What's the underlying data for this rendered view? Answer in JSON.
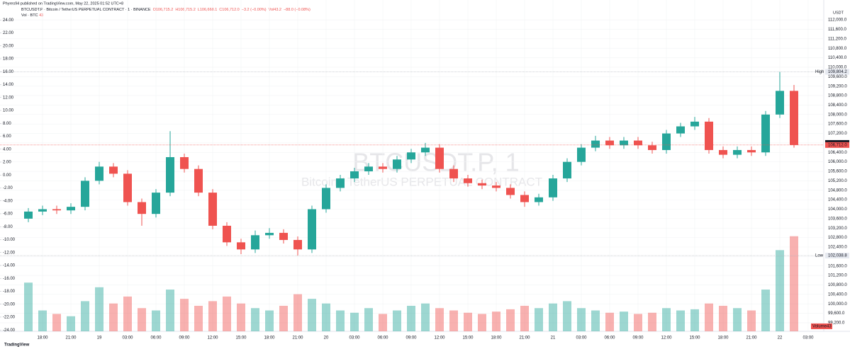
{
  "header": {
    "published": "Phyres94 published on TradingView.com, May 22, 2025 01:52 UTC+8",
    "symbol": "BTCUSDT.P · Bitcoin / TetherUS PERPETUAL CONTRACT · 1 · BINANCE",
    "ohlc": [
      "O106,715.2",
      "H106,715.2",
      "L106,668.1",
      "C106,712.0",
      "−3.2 (−0.00%)",
      "Vol43.2",
      "−88.0 (−0.08%)"
    ],
    "vol_label": "Vol · BTC",
    "vol_value": "43"
  },
  "watermark": {
    "symbol": "BTCUSDT.P, 1",
    "name": "Bitcoin / TetherUS PERPETUAL CONTRACT"
  },
  "footer": "TradingView",
  "chart_data": {
    "type": "candlestick",
    "currency": "USDT",
    "categories": [
      null,
      "18:00",
      null,
      "21:00",
      null,
      "19",
      null,
      "03:00",
      null,
      "06:00",
      null,
      "09:00",
      null,
      "12:00",
      null,
      "15:00",
      null,
      "18:00",
      null,
      "21:00",
      null,
      "20",
      null,
      "03:00",
      null,
      "06:00",
      null,
      "09:00",
      null,
      "12:00",
      null,
      "15:00",
      null,
      "18:00",
      null,
      "21:00",
      null,
      "21",
      null,
      "03:00",
      null,
      "06:00",
      null,
      "09:00",
      null,
      "12:00",
      null,
      "15:00",
      null,
      "18:00",
      null,
      "21:00",
      null,
      "22",
      null,
      "03:00"
    ],
    "open": [
      103600,
      103900,
      104000,
      103950,
      104100,
      105200,
      105800,
      105500,
      104300,
      103800,
      104700,
      106200,
      105700,
      104700,
      103300,
      102600,
      102300,
      102900,
      103000,
      102700,
      102300,
      104000,
      104900,
      105300,
      105600,
      105800,
      105700,
      106100,
      106400,
      106600,
      105700,
      105300,
      105100,
      105000,
      104900,
      104600,
      104300,
      104500,
      105300,
      106000,
      106600,
      106900,
      106700,
      106900,
      106700,
      106500,
      107200,
      107500,
      107700,
      106500,
      106300,
      106500,
      106400,
      108000,
      109000,
      null
    ],
    "high": [
      104050,
      104150,
      104150,
      104250,
      105350,
      106000,
      105950,
      105650,
      104450,
      104850,
      107300,
      106350,
      105850,
      104850,
      103450,
      102750,
      103100,
      103200,
      103150,
      102850,
      104150,
      105050,
      105450,
      105750,
      105950,
      105950,
      106250,
      106550,
      106800,
      106750,
      105850,
      105450,
      105250,
      105150,
      105050,
      104750,
      104650,
      105450,
      106150,
      106750,
      107100,
      107050,
      107050,
      107050,
      106850,
      107350,
      107650,
      107900,
      107850,
      106650,
      106650,
      106650,
      108150,
      109804.2,
      109250,
      null
    ],
    "low": [
      103450,
      103750,
      103800,
      103800,
      103950,
      105050,
      105350,
      104150,
      103300,
      103650,
      104550,
      105550,
      104550,
      103150,
      102450,
      102100,
      102150,
      102750,
      102550,
      102038.8,
      102150,
      103850,
      104750,
      105150,
      105450,
      105550,
      105550,
      105950,
      106250,
      105550,
      105150,
      104950,
      104850,
      104750,
      104450,
      104100,
      104150,
      104350,
      105150,
      105850,
      106450,
      106550,
      106550,
      106550,
      106350,
      106350,
      107050,
      107350,
      106350,
      106150,
      106150,
      106250,
      106250,
      107850,
      106600,
      null
    ],
    "close": [
      103900,
      104000,
      103950,
      104100,
      105200,
      105800,
      105500,
      104300,
      103800,
      104700,
      106200,
      105700,
      104700,
      103300,
      102600,
      102300,
      102900,
      103000,
      102700,
      102300,
      104000,
      104900,
      105300,
      105600,
      105800,
      105700,
      106100,
      106400,
      106600,
      105700,
      105300,
      105100,
      105000,
      104900,
      104600,
      104300,
      104500,
      105300,
      106000,
      106600,
      106900,
      106700,
      106900,
      106700,
      106500,
      107200,
      107500,
      107700,
      106500,
      106300,
      106500,
      106400,
      108000,
      109000,
      106712,
      null
    ],
    "volume": [
      420,
      180,
      150,
      130,
      260,
      380,
      240,
      300,
      200,
      180,
      360,
      280,
      220,
      260,
      300,
      240,
      200,
      180,
      220,
      320,
      280,
      240,
      180,
      160,
      200,
      150,
      180,
      220,
      240,
      200,
      180,
      160,
      150,
      170,
      190,
      220,
      200,
      240,
      260,
      200,
      180,
      160,
      170,
      150,
      160,
      200,
      180,
      190,
      240,
      220,
      200,
      180,
      360,
      700,
      820,
      null
    ],
    "up_color": "#26a69a",
    "down_color": "#ef5350",
    "ylim": [
      98840,
      112840
    ],
    "yticks": [
      {
        "value": 99200,
        "label": "99,200.0"
      },
      {
        "value": 99600,
        "label": "99,600.0"
      },
      {
        "value": 100000,
        "label": "100,000.0"
      },
      {
        "value": 100400,
        "label": "100,400.0"
      },
      {
        "value": 100800,
        "label": "100,800.0"
      },
      {
        "value": 101200,
        "label": "101,200.0"
      },
      {
        "value": 101600,
        "label": "101,600.0"
      },
      {
        "value": 102000,
        "label": "102,000.0"
      },
      {
        "value": 102400,
        "label": "102,400.0"
      },
      {
        "value": 102800,
        "label": "102,800.0"
      },
      {
        "value": 103200,
        "label": "103,200.0"
      },
      {
        "value": 103600,
        "label": "103,600.0"
      },
      {
        "value": 104000,
        "label": "104,000.0"
      },
      {
        "value": 104400,
        "label": "104,400.0"
      },
      {
        "value": 104800,
        "label": "104,800.0"
      },
      {
        "value": 105200,
        "label": "105,200.0"
      },
      {
        "value": 105600,
        "label": "105,600.0"
      },
      {
        "value": 106000,
        "label": "106,000.0"
      },
      {
        "value": 106400,
        "label": "106,400.0"
      },
      {
        "value": 106800,
        "label": "106,800.0"
      },
      {
        "value": 107200,
        "label": "107,200.0"
      },
      {
        "value": 107600,
        "label": "107,600.0"
      },
      {
        "value": 108000,
        "label": "108,000.0"
      },
      {
        "value": 108400,
        "label": "108,400.0"
      },
      {
        "value": 108800,
        "label": "108,800.0"
      },
      {
        "value": 109200,
        "label": "109,200.0"
      },
      {
        "value": 109600,
        "label": "109,600.0"
      },
      {
        "value": 110000,
        "label": "110,000.0"
      },
      {
        "value": 110400,
        "label": "110,400.0"
      },
      {
        "value": 110800,
        "label": "110,800.0"
      },
      {
        "value": 111200,
        "label": "111,200.0"
      },
      {
        "value": 111600,
        "label": "111,600.0"
      },
      {
        "value": 112000,
        "label": "112,000.0"
      }
    ],
    "y2lim": [
      -24.2,
      27.1
    ],
    "y2ticks": [
      {
        "value": 24,
        "label": "24.00"
      },
      {
        "value": 22,
        "label": "22.00"
      },
      {
        "value": 20,
        "label": "20.00"
      },
      {
        "value": 18,
        "label": "18.00"
      },
      {
        "value": 16,
        "label": "16.00"
      },
      {
        "value": 14,
        "label": "14.00"
      },
      {
        "value": 12,
        "label": "12.00"
      },
      {
        "value": 10,
        "label": "10.00"
      },
      {
        "value": 8,
        "label": "8.00"
      },
      {
        "value": 6,
        "label": "6.00"
      },
      {
        "value": 4,
        "label": "4.00"
      },
      {
        "value": 2,
        "label": "2.00"
      },
      {
        "value": 0,
        "label": "0.00"
      },
      {
        "value": -2,
        "label": "-2.00"
      },
      {
        "value": -4,
        "label": "-4.00"
      },
      {
        "value": -6,
        "label": "-6.00"
      },
      {
        "value": -8,
        "label": "-8.00"
      },
      {
        "value": -10,
        "label": "-10.00"
      },
      {
        "value": -12,
        "label": "-12.00"
      },
      {
        "value": -14,
        "label": "-14.00"
      },
      {
        "value": -16,
        "label": "-16.00"
      },
      {
        "value": -18,
        "label": "-18.00"
      },
      {
        "value": -20,
        "label": "-20.00"
      },
      {
        "value": -22,
        "label": "-22.00"
      },
      {
        "value": -24,
        "label": "-24.00"
      }
    ],
    "vlim": [
      0,
      1000
    ],
    "high_marker": {
      "label": "High",
      "value": 109804.2,
      "value_label": "109,804.2"
    },
    "low_marker": {
      "label": "Low",
      "value": 102038.8,
      "value_label": "102,038.8"
    },
    "mark_price": {
      "value": 106800.3,
      "value_label": "106,800.3"
    },
    "last_price": {
      "value": 106712,
      "value_label": "106,712.0"
    },
    "volume_marker": {
      "label": "Volume",
      "value": 43,
      "value_label": "43"
    },
    "grid": true
  }
}
